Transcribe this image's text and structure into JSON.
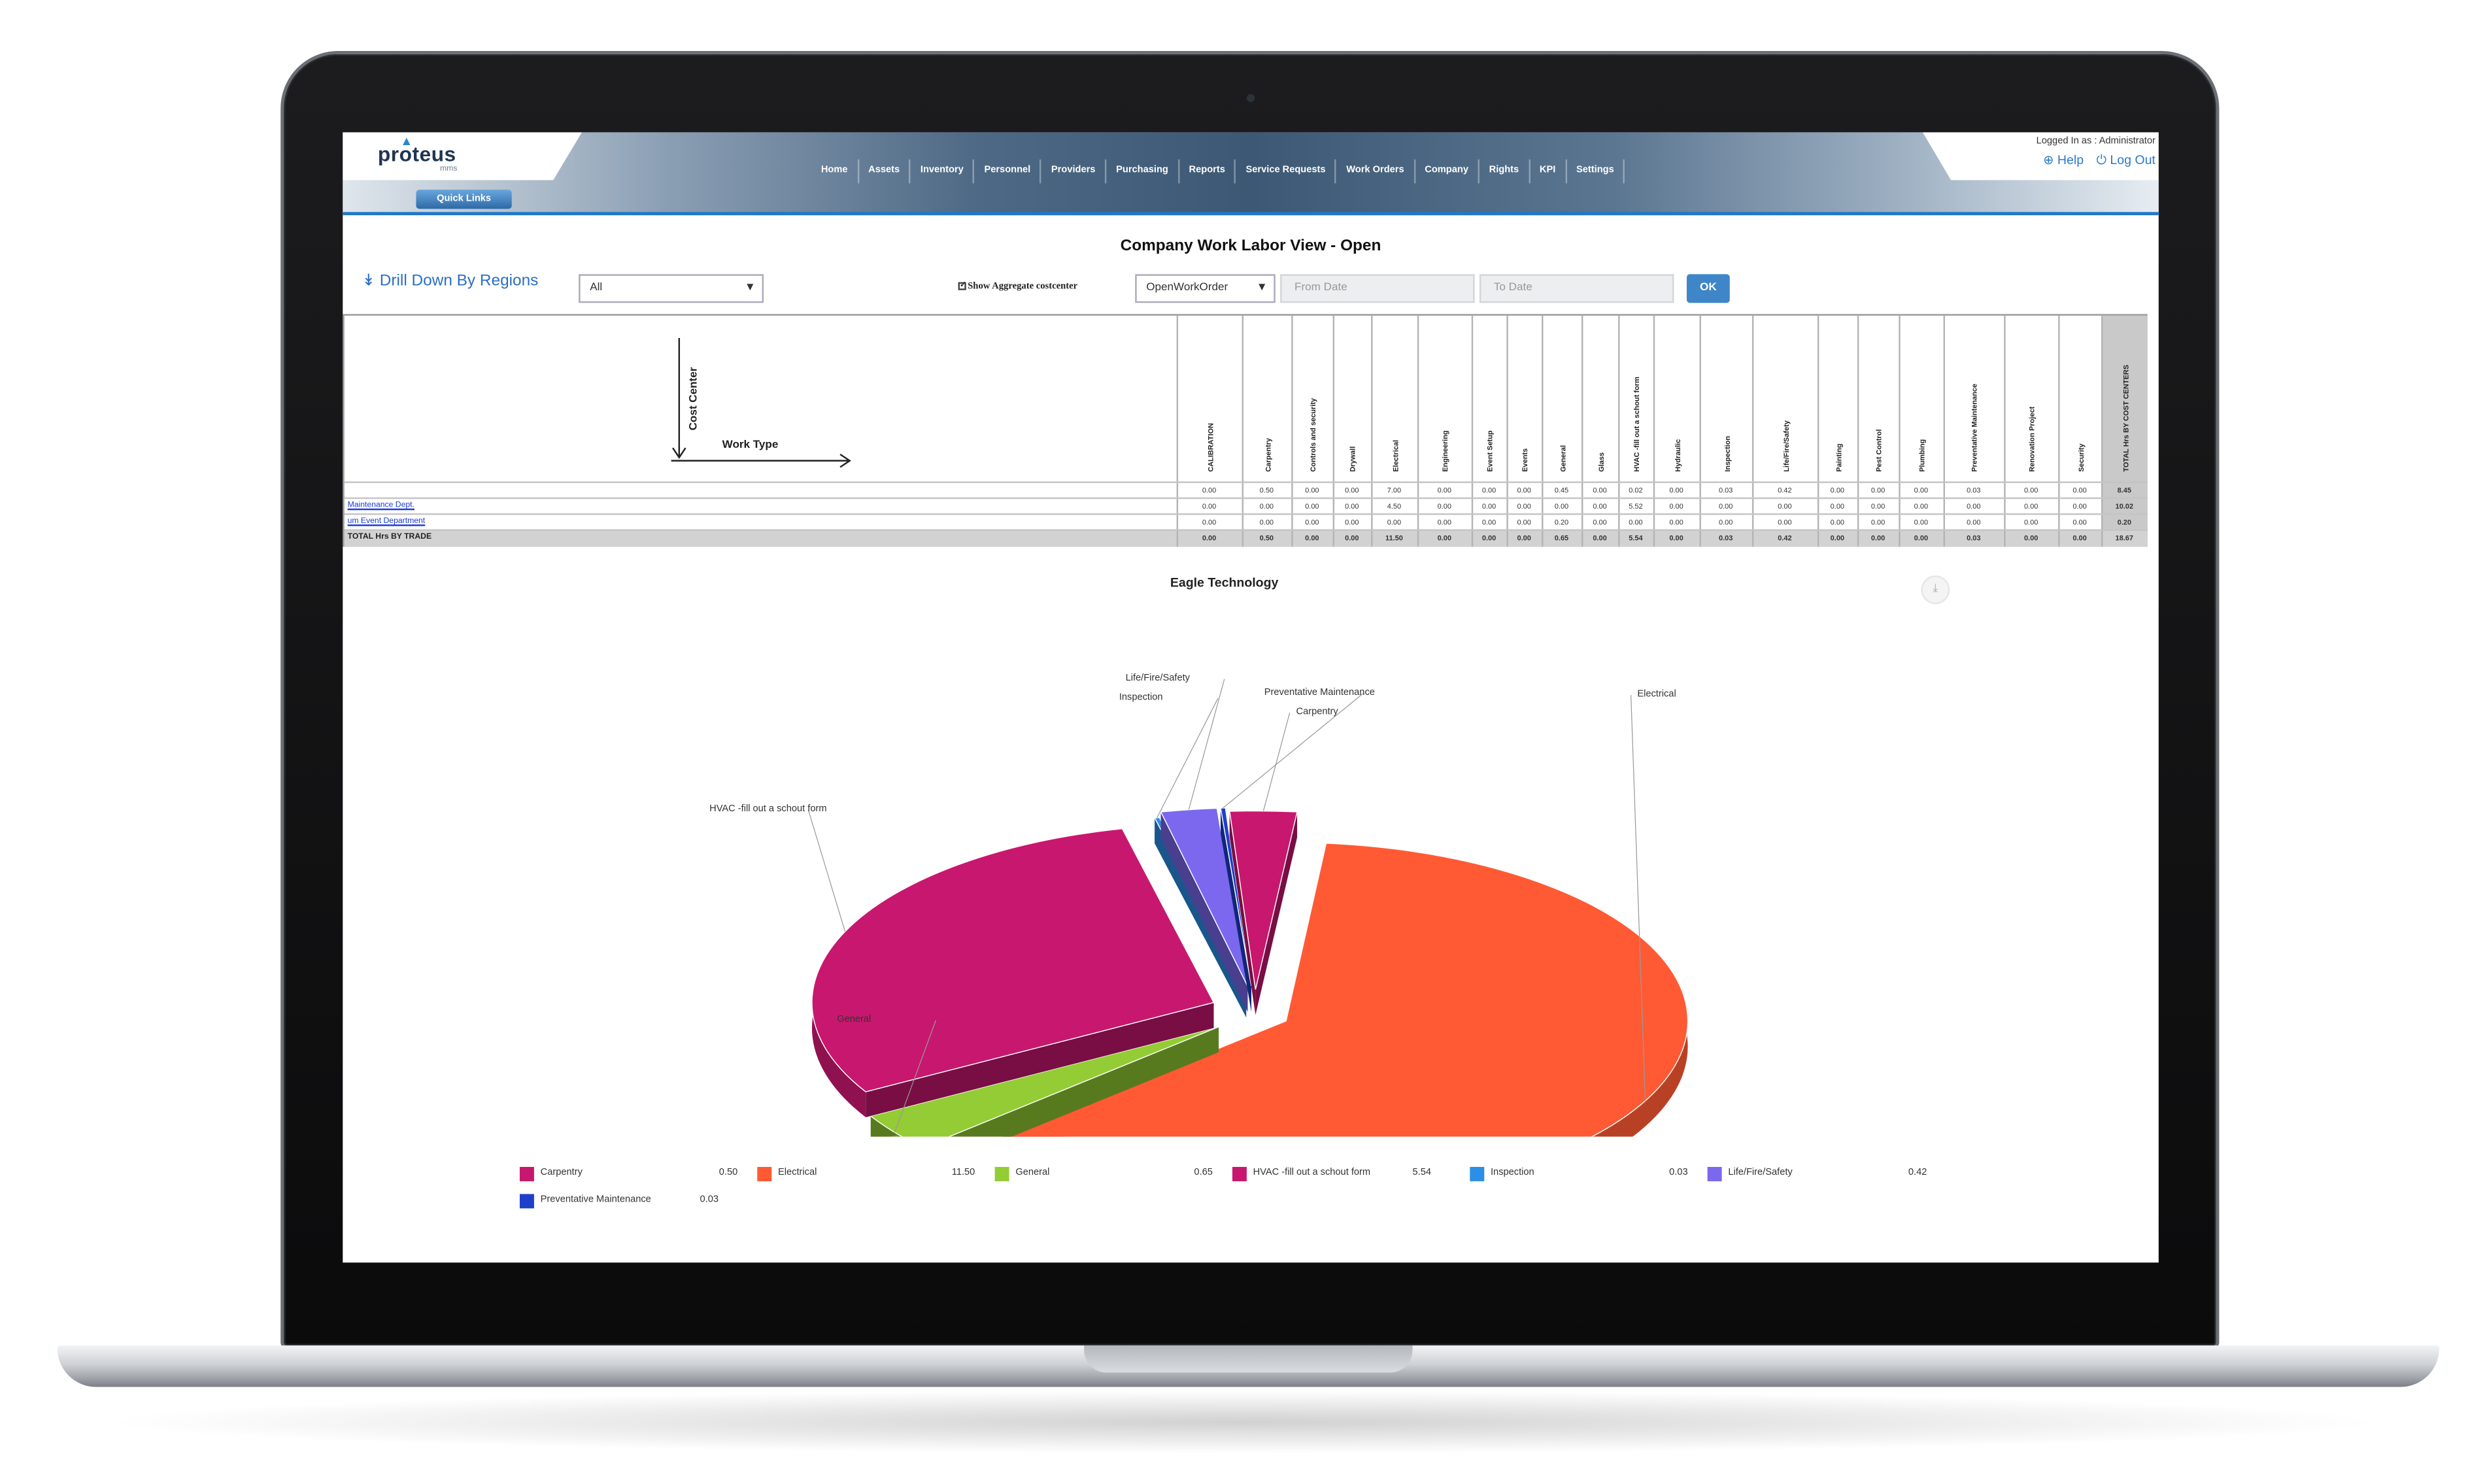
{
  "app": {
    "logo": "proteus",
    "logo_sub": "mms",
    "quick_links": "Quick Links",
    "logged_in": "Logged In as : Administrator",
    "help": "Help",
    "logout": "Log Out",
    "nav": [
      "Home",
      "Assets",
      "Inventory",
      "Personnel",
      "Providers",
      "Purchasing",
      "Reports",
      "Service Requests",
      "Work Orders",
      "Company",
      "Rights",
      "KPI",
      "Settings"
    ]
  },
  "page": {
    "title": "Company Work Labor View - Open",
    "drill_down": "Drill Down By Regions",
    "region_select": "All",
    "aggregate_label": "Show Aggregate costcenter",
    "wo_select": "OpenWorkOrder",
    "from_date_placeholder": "From Date",
    "to_date_placeholder": "To Date",
    "ok": "OK"
  },
  "table": {
    "cost_center_label": "Cost Center",
    "work_type_label": "Work Type",
    "columns": [
      "CALIBRATION",
      "Carpentry",
      "Controls and security",
      "Drywall",
      "Electrical",
      "Engineering",
      "Event Setup",
      "Events",
      "General",
      "Glass",
      "HVAC -fill out a schout form",
      "Hydraulic",
      "Inspection",
      "Life/Fire/Safety",
      "Painting",
      "Pest Control",
      "Plumbing",
      "Preventative Maintenance",
      "Renovation Project",
      "Security",
      "TOTAL Hrs BY COST CENTERS"
    ],
    "rows": [
      {
        "label": "",
        "values": [
          "0.00",
          "0.50",
          "0.00",
          "0.00",
          "7.00",
          "0.00",
          "0.00",
          "0.00",
          "0.45",
          "0.00",
          "0.02",
          "0.00",
          "0.03",
          "0.42",
          "0.00",
          "0.00",
          "0.00",
          "0.03",
          "0.00",
          "0.00",
          "8.45"
        ]
      },
      {
        "label": "Maintenance Dept.",
        "values": [
          "0.00",
          "0.00",
          "0.00",
          "0.00",
          "4.50",
          "0.00",
          "0.00",
          "0.00",
          "0.00",
          "0.00",
          "5.52",
          "0.00",
          "0.00",
          "0.00",
          "0.00",
          "0.00",
          "0.00",
          "0.00",
          "0.00",
          "0.00",
          "10.02"
        ]
      },
      {
        "label": "um Event Department",
        "values": [
          "0.00",
          "0.00",
          "0.00",
          "0.00",
          "0.00",
          "0.00",
          "0.00",
          "0.00",
          "0.20",
          "0.00",
          "0.00",
          "0.00",
          "0.00",
          "0.00",
          "0.00",
          "0.00",
          "0.00",
          "0.00",
          "0.00",
          "0.00",
          "0.20"
        ]
      },
      {
        "label": "TOTAL Hrs BY TRADE",
        "values": [
          "0.00",
          "0.50",
          "0.00",
          "0.00",
          "11.50",
          "0.00",
          "0.00",
          "0.00",
          "0.65",
          "0.00",
          "5.54",
          "0.00",
          "0.03",
          "0.42",
          "0.00",
          "0.00",
          "0.00",
          "0.03",
          "0.00",
          "0.00",
          "18.67"
        ]
      }
    ]
  },
  "chart_data": {
    "type": "pie",
    "title": "Eagle Technology",
    "series": [
      {
        "name": "Carpentry",
        "value": 0.5,
        "color": "#c8176f"
      },
      {
        "name": "Electrical",
        "value": 11.5,
        "color": "#ff5a34"
      },
      {
        "name": "General",
        "value": 0.65,
        "color": "#93cc34"
      },
      {
        "name": "HVAC -fill out a schout form",
        "value": 5.54,
        "color": "#c8176f"
      },
      {
        "name": "Inspection",
        "value": 0.03,
        "color": "#2b8fe8"
      },
      {
        "name": "Life/Fire/Safety",
        "value": 0.42,
        "color": "#7b68ee"
      },
      {
        "name": "Preventative Maintenance",
        "value": 0.03,
        "color": "#1e40c8"
      }
    ],
    "legend_values": [
      "0.50",
      "11.50",
      "0.65",
      "5.54",
      "0.03",
      "0.42",
      "0.03"
    ],
    "legend": "bottom",
    "three_d": true,
    "exploded": true
  }
}
